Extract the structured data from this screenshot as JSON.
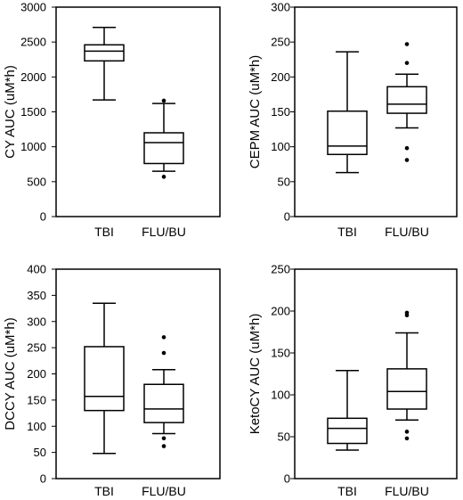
{
  "chart_data": [
    {
      "type": "box",
      "ylabel": "CY AUC (uM*h)",
      "ylim": [
        0,
        3000
      ],
      "yticks": [
        0,
        500,
        1000,
        1500,
        2000,
        2500,
        3000
      ],
      "categories": [
        "TBI",
        "FLU/BU"
      ],
      "boxes": [
        {
          "category": "TBI",
          "whisker_low": 1670,
          "q1": 2230,
          "median": 2370,
          "q3": 2460,
          "whisker_high": 2710,
          "outliers": []
        },
        {
          "category": "FLU/BU",
          "whisker_low": 650,
          "q1": 760,
          "median": 1060,
          "q3": 1200,
          "whisker_high": 1620,
          "outliers": [
            570,
            1660
          ]
        }
      ]
    },
    {
      "type": "box",
      "ylabel": "CEPM AUC (uM*h)",
      "ylim": [
        0,
        300
      ],
      "yticks": [
        0,
        50,
        100,
        150,
        200,
        250,
        300
      ],
      "categories": [
        "TBI",
        "FLU/BU"
      ],
      "boxes": [
        {
          "category": "TBI",
          "whisker_low": 63,
          "q1": 89,
          "median": 101,
          "q3": 151,
          "whisker_high": 236,
          "outliers": []
        },
        {
          "category": "FLU/BU",
          "whisker_low": 127,
          "q1": 148,
          "median": 161,
          "q3": 186,
          "whisker_high": 204,
          "outliers": [
            81,
            98,
            220,
            247
          ]
        }
      ]
    },
    {
      "type": "box",
      "ylabel": "DCCY AUC (uM*h)",
      "ylim": [
        0,
        400
      ],
      "yticks": [
        0,
        50,
        100,
        150,
        200,
        250,
        300,
        350,
        400
      ],
      "categories": [
        "TBI",
        "FLU/BU"
      ],
      "boxes": [
        {
          "category": "TBI",
          "whisker_low": 48,
          "q1": 130,
          "median": 157,
          "q3": 252,
          "whisker_high": 335,
          "outliers": []
        },
        {
          "category": "FLU/BU",
          "whisker_low": 86,
          "q1": 107,
          "median": 133,
          "q3": 180,
          "whisker_high": 208,
          "outliers": [
            62,
            77,
            240,
            270
          ]
        }
      ]
    },
    {
      "type": "box",
      "ylabel": "KetoCY AUC (uM*h)",
      "ylim": [
        0,
        250
      ],
      "yticks": [
        0,
        50,
        100,
        150,
        200,
        250
      ],
      "categories": [
        "TBI",
        "FLU/BU"
      ],
      "boxes": [
        {
          "category": "TBI",
          "whisker_low": 34,
          "q1": 42,
          "median": 60,
          "q3": 72,
          "whisker_high": 129,
          "outliers": []
        },
        {
          "category": "FLU/BU",
          "whisker_low": 70,
          "q1": 83,
          "median": 104,
          "q3": 131,
          "whisker_high": 174,
          "outliers": [
            48,
            56,
            195,
            198
          ]
        }
      ]
    }
  ]
}
